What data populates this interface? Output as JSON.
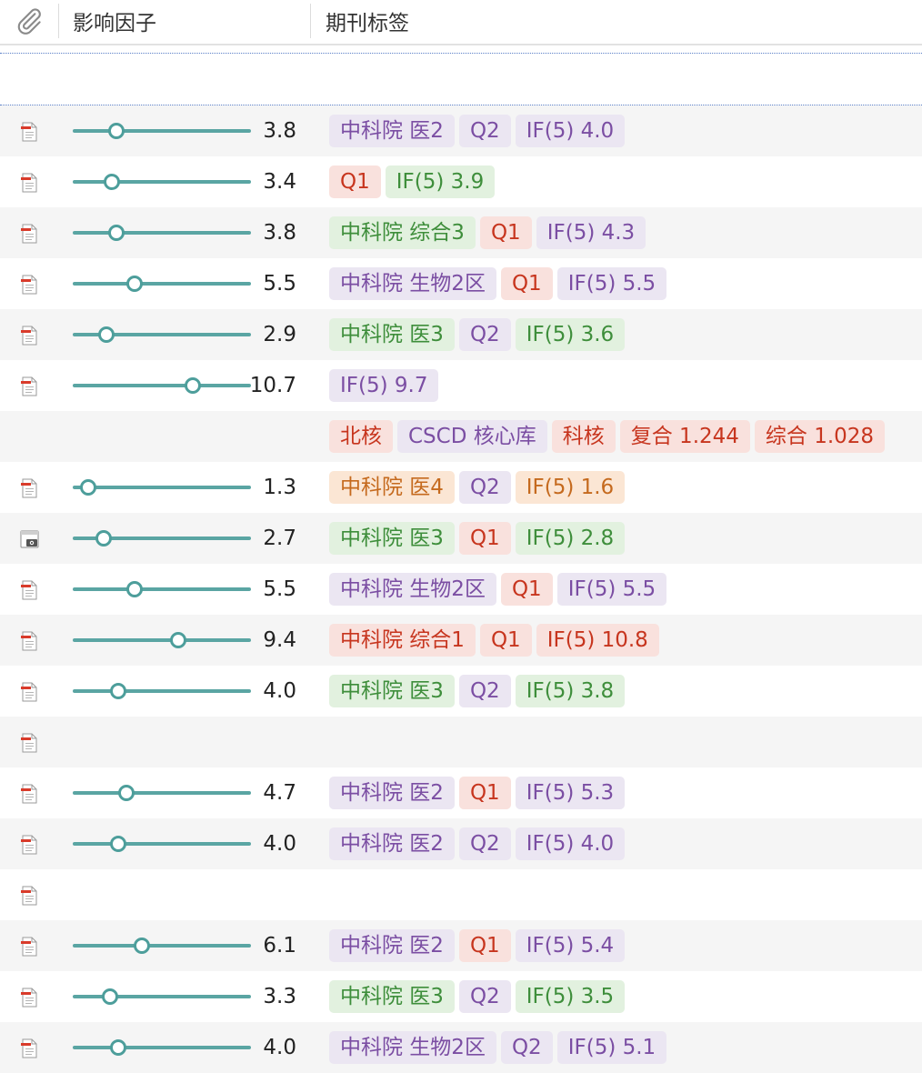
{
  "columns": {
    "attachment_icon": "paperclip-icon",
    "impact_factor": "影响因子",
    "journal_tags": "期刊标签"
  },
  "colors": {
    "slider": "#5aa5a3",
    "purple": "#7b4ea3",
    "green": "#3e8e3b",
    "red": "#c7351e",
    "orange": "#c56a1e"
  },
  "slider_scale_max": 16,
  "rows": [
    {
      "icon": "pdf-icon",
      "if_value": "3.8",
      "slider_value": 3.8,
      "tags": [
        {
          "text": "中科院 医2",
          "color": "purple"
        },
        {
          "text": "Q2",
          "color": "purple"
        },
        {
          "text": "IF(5) 4.0",
          "color": "purple"
        }
      ]
    },
    {
      "icon": "pdf-icon",
      "if_value": "3.4",
      "slider_value": 3.4,
      "tags": [
        {
          "text": "Q1",
          "color": "red"
        },
        {
          "text": "IF(5) 3.9",
          "color": "green"
        }
      ]
    },
    {
      "icon": "pdf-icon",
      "if_value": "3.8",
      "slider_value": 3.8,
      "tags": [
        {
          "text": "中科院 综合3",
          "color": "green"
        },
        {
          "text": "Q1",
          "color": "red"
        },
        {
          "text": "IF(5) 4.3",
          "color": "purple"
        }
      ]
    },
    {
      "icon": "pdf-icon",
      "if_value": "5.5",
      "slider_value": 5.5,
      "tags": [
        {
          "text": "中科院 生物2区",
          "color": "purple"
        },
        {
          "text": "Q1",
          "color": "red"
        },
        {
          "text": "IF(5) 5.5",
          "color": "purple"
        }
      ]
    },
    {
      "icon": "pdf-icon",
      "if_value": "2.9",
      "slider_value": 2.9,
      "tags": [
        {
          "text": "中科院 医3",
          "color": "green"
        },
        {
          "text": "Q2",
          "color": "purple"
        },
        {
          "text": "IF(5) 3.6",
          "color": "green"
        }
      ]
    },
    {
      "icon": "pdf-icon",
      "if_value": "10.7",
      "slider_value": 10.7,
      "tags": [
        {
          "text": "IF(5) 9.7",
          "color": "purple"
        }
      ]
    },
    {
      "icon": null,
      "if_value": null,
      "slider_value": null,
      "tags": [
        {
          "text": "北核",
          "color": "red"
        },
        {
          "text": "CSCD 核心库",
          "color": "purple"
        },
        {
          "text": "科核",
          "color": "red"
        },
        {
          "text": "复合 1.244",
          "color": "red"
        },
        {
          "text": "综合 1.028",
          "color": "red"
        }
      ]
    },
    {
      "icon": "pdf-icon",
      "if_value": "1.3",
      "slider_value": 1.3,
      "tags": [
        {
          "text": "中科院 医4",
          "color": "orange"
        },
        {
          "text": "Q2",
          "color": "purple"
        },
        {
          "text": "IF(5) 1.6",
          "color": "orange"
        }
      ]
    },
    {
      "icon": "snapshot-icon",
      "if_value": "2.7",
      "slider_value": 2.7,
      "tags": [
        {
          "text": "中科院 医3",
          "color": "green"
        },
        {
          "text": "Q1",
          "color": "red"
        },
        {
          "text": "IF(5) 2.8",
          "color": "green"
        }
      ]
    },
    {
      "icon": "pdf-icon",
      "if_value": "5.5",
      "slider_value": 5.5,
      "tags": [
        {
          "text": "中科院 生物2区",
          "color": "purple"
        },
        {
          "text": "Q1",
          "color": "red"
        },
        {
          "text": "IF(5) 5.5",
          "color": "purple"
        }
      ]
    },
    {
      "icon": "pdf-icon",
      "if_value": "9.4",
      "slider_value": 9.4,
      "tags": [
        {
          "text": "中科院 综合1",
          "color": "red"
        },
        {
          "text": "Q1",
          "color": "red"
        },
        {
          "text": "IF(5) 10.8",
          "color": "red"
        }
      ]
    },
    {
      "icon": "pdf-icon",
      "if_value": "4.0",
      "slider_value": 4.0,
      "tags": [
        {
          "text": "中科院 医3",
          "color": "green"
        },
        {
          "text": "Q2",
          "color": "purple"
        },
        {
          "text": "IF(5) 3.8",
          "color": "green"
        }
      ]
    },
    {
      "icon": "pdf-icon",
      "if_value": null,
      "slider_value": null,
      "tags": []
    },
    {
      "icon": "pdf-icon",
      "if_value": "4.7",
      "slider_value": 4.7,
      "tags": [
        {
          "text": "中科院 医2",
          "color": "purple"
        },
        {
          "text": "Q1",
          "color": "red"
        },
        {
          "text": "IF(5) 5.3",
          "color": "purple"
        }
      ]
    },
    {
      "icon": "pdf-icon",
      "if_value": "4.0",
      "slider_value": 4.0,
      "tags": [
        {
          "text": "中科院 医2",
          "color": "purple"
        },
        {
          "text": "Q2",
          "color": "purple"
        },
        {
          "text": "IF(5) 4.0",
          "color": "purple"
        }
      ]
    },
    {
      "icon": "pdf-icon",
      "if_value": null,
      "slider_value": null,
      "tags": []
    },
    {
      "icon": "pdf-icon",
      "if_value": "6.1",
      "slider_value": 6.1,
      "tags": [
        {
          "text": "中科院 医2",
          "color": "purple"
        },
        {
          "text": "Q1",
          "color": "red"
        },
        {
          "text": "IF(5) 5.4",
          "color": "purple"
        }
      ]
    },
    {
      "icon": "pdf-icon",
      "if_value": "3.3",
      "slider_value": 3.3,
      "tags": [
        {
          "text": "中科院 医3",
          "color": "green"
        },
        {
          "text": "Q2",
          "color": "purple"
        },
        {
          "text": "IF(5) 3.5",
          "color": "green"
        }
      ]
    },
    {
      "icon": "pdf-icon",
      "if_value": "4.0",
      "slider_value": 4.0,
      "tags": [
        {
          "text": "中科院 生物2区",
          "color": "purple"
        },
        {
          "text": "Q2",
          "color": "purple"
        },
        {
          "text": "IF(5) 5.1",
          "color": "purple"
        }
      ]
    }
  ]
}
